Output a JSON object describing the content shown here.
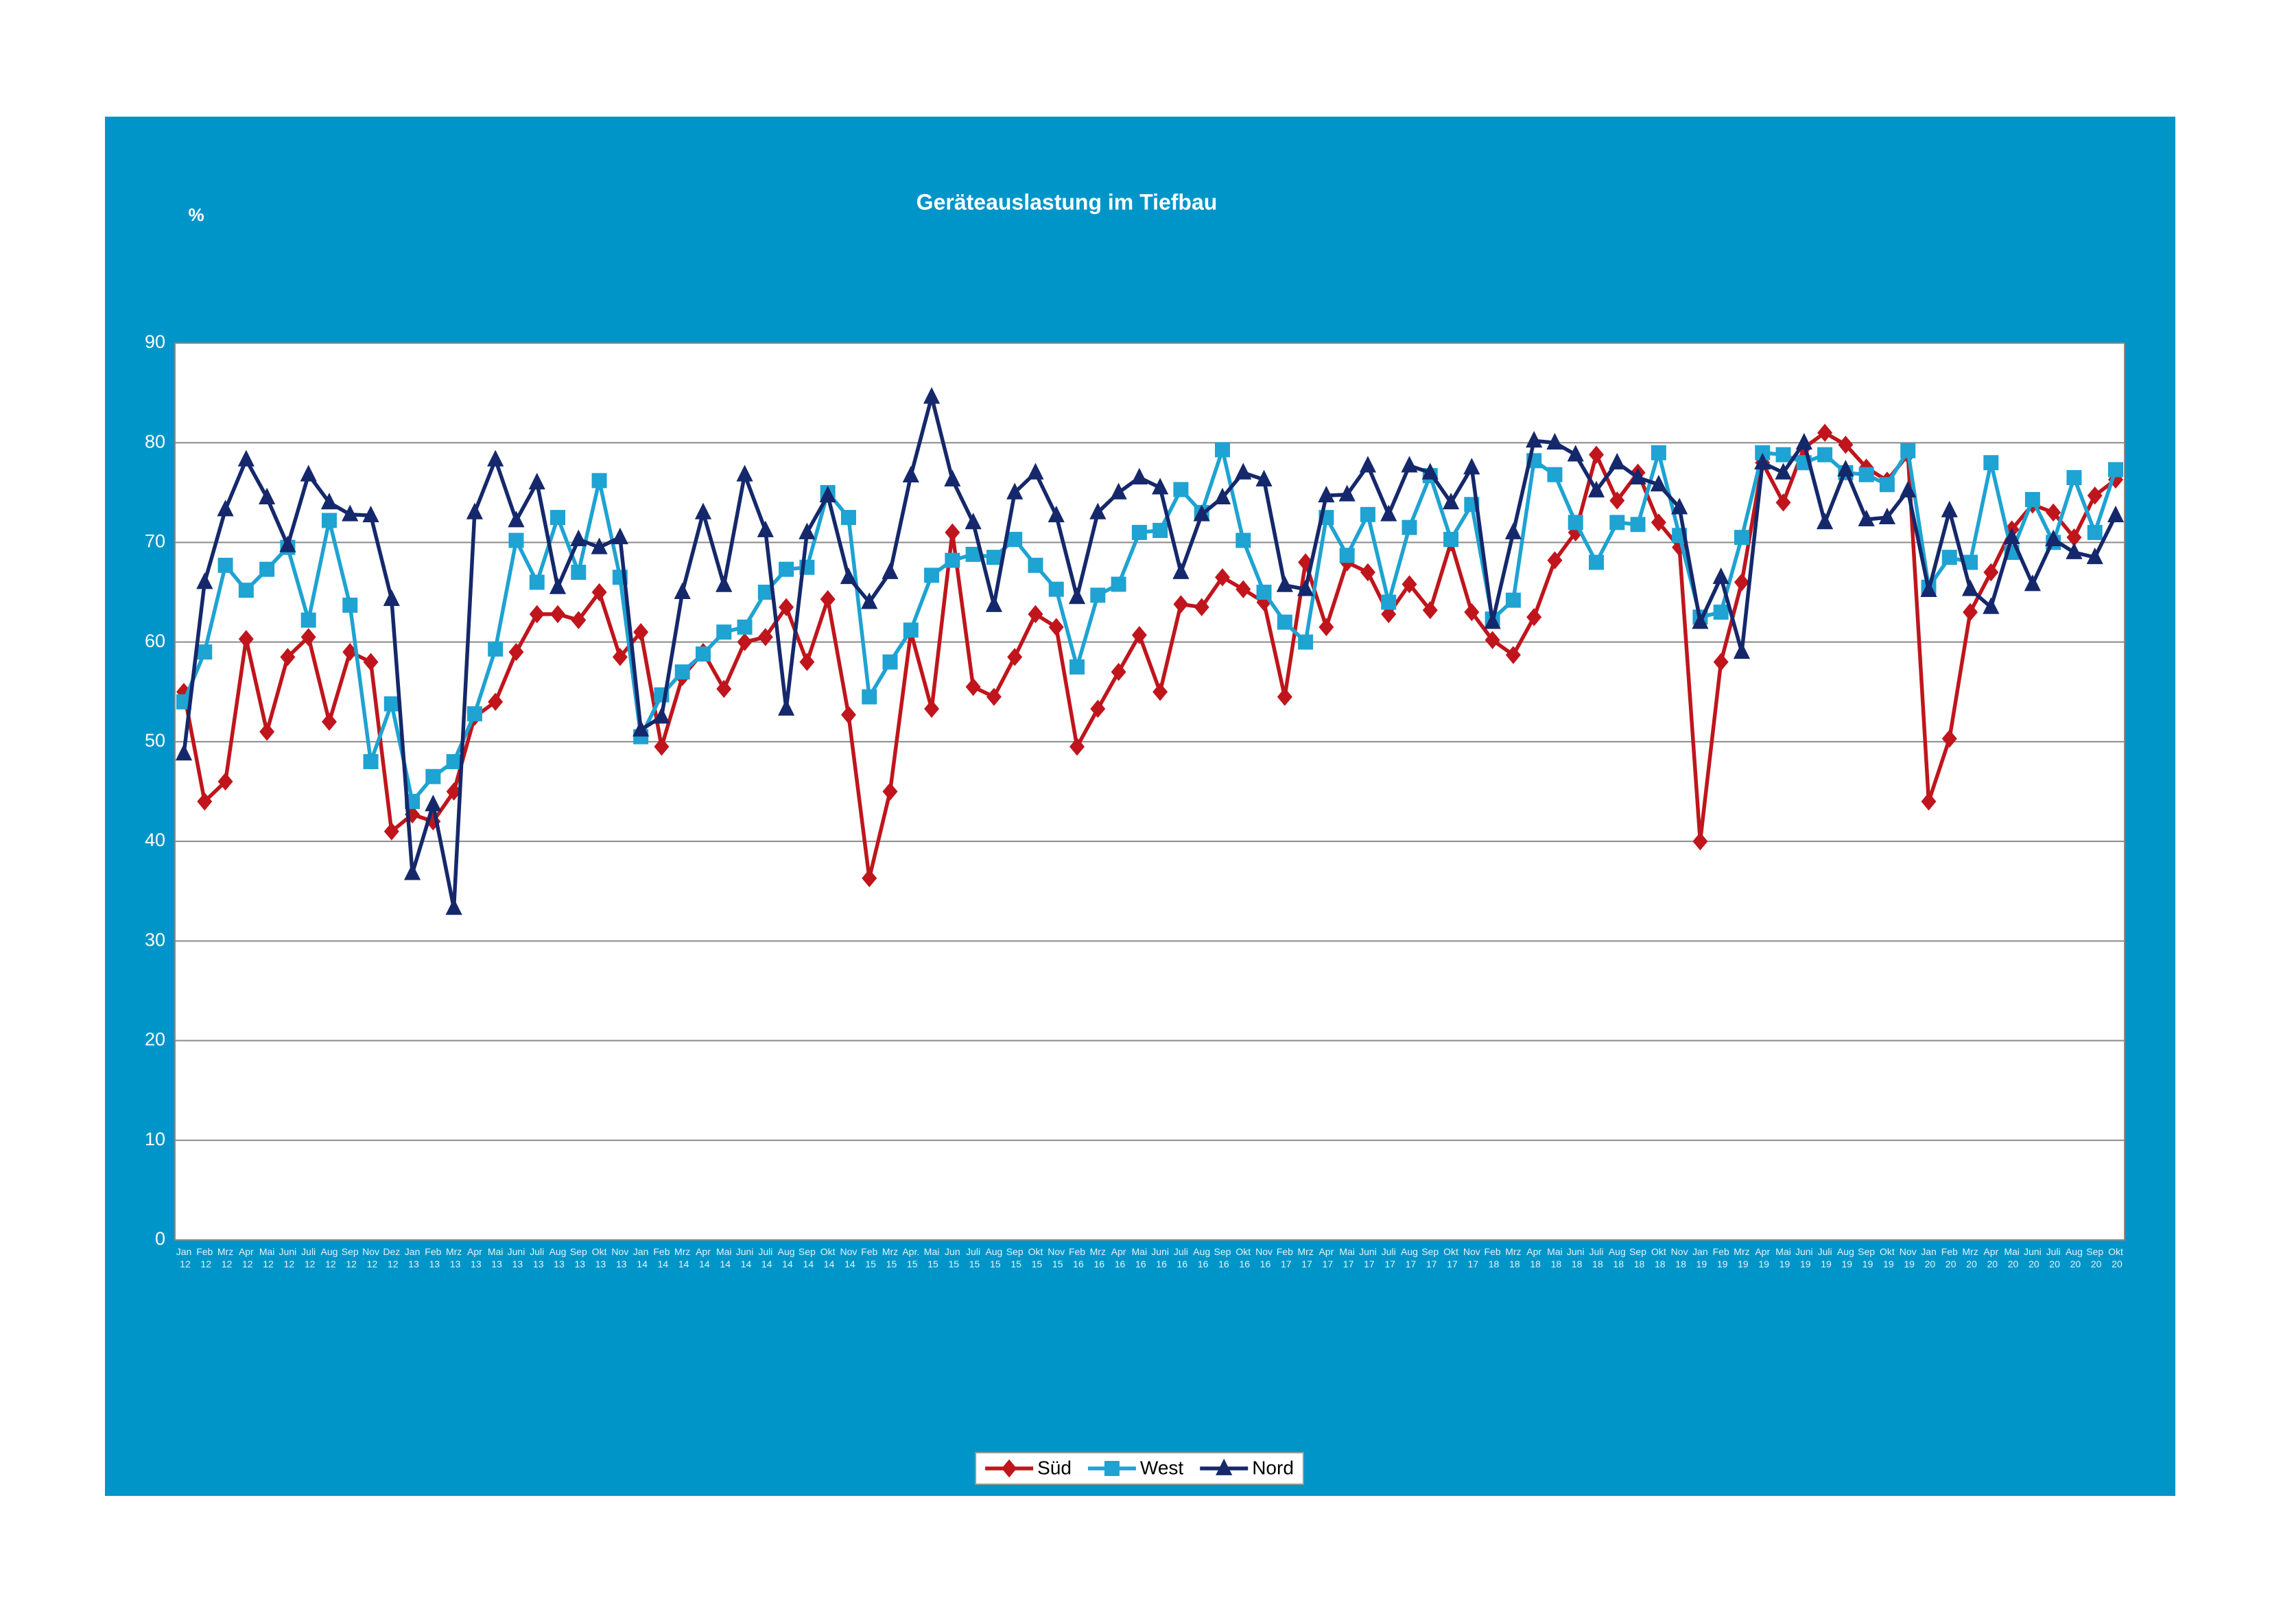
{
  "chart_data": {
    "type": "line",
    "title": "Geräteauslastung im Tiefbau",
    "y_label": "%",
    "ylim": [
      0,
      90
    ],
    "yticks": [
      0,
      10,
      20,
      30,
      40,
      50,
      60,
      70,
      80,
      90
    ],
    "grid": true,
    "legend": "bottom",
    "categories": [
      "Jan 12",
      "Feb 12",
      "Mrz 12",
      "Apr 12",
      "Mai 12",
      "Juni 12",
      "Juli 12",
      "Aug 12",
      "Sep 12",
      "Nov 12",
      "Dez 12",
      "Jan 13",
      "Feb 13",
      "Mrz 13",
      "Apr 13",
      "Mai 13",
      "Juni 13",
      "Juli 13",
      "Aug 13",
      "Sep 13",
      "Okt 13",
      "Nov 13",
      "Jan 14",
      "Feb 14",
      "Mrz 14",
      "Apr 14",
      "Mai 14",
      "Juni 14",
      "Juli 14",
      "Aug 14",
      "Sep 14",
      "Okt 14",
      "Nov 14",
      "Feb 15",
      "Mrz 15",
      "Apr. 15",
      "Mai 15",
      "Jun 15",
      "Juli 15",
      "Aug 15",
      "Sep 15",
      "Okt 15",
      "Nov 15",
      "Feb 16",
      "Mrz 16",
      "Apr 16",
      "Mai 16",
      "Juni 16",
      "Juli 16",
      "Aug 16",
      "Sep 16",
      "Okt 16",
      "Nov 16",
      "Feb 17",
      "Mrz 17",
      "Apr 17",
      "Mai 17",
      "Juni 17",
      "Juli 17",
      "Aug 17",
      "Sep 17",
      "Okt 17",
      "Nov 17",
      "Feb 18",
      "Mrz 18",
      "Apr 18",
      "Mai 18",
      "Juni 18",
      "Juli 18",
      "Aug 18",
      "Sep 18",
      "Okt 18",
      "Nov 18",
      "Jan 19",
      "Feb 19",
      "Mrz 19",
      "Apr 19",
      "Mai 19",
      "Juni 19",
      "Juli 19",
      "Aug 19",
      "Sep 19",
      "Okt 19",
      "Nov 19",
      "Jan 20",
      "Feb 20",
      "Mrz 20",
      "Apr 20",
      "Mai 20",
      "Juni 20",
      "Juli 20",
      "Aug 20",
      "Sep 20",
      "Okt 20"
    ],
    "series": [
      {
        "name": "Süd",
        "color": "#c0151c",
        "marker": "diamond",
        "values": [
          55,
          44,
          46,
          60.3,
          51,
          58.5,
          60.5,
          52,
          59,
          58,
          41,
          42.7,
          42,
          45,
          52.5,
          54,
          59,
          62.8,
          62.8,
          62.2,
          65,
          58.5,
          61,
          49.5,
          56.5,
          59,
          55.3,
          60,
          60.5,
          63.5,
          58,
          64.3,
          52.7,
          36.3,
          45,
          61,
          53.3,
          71,
          55.5,
          54.5,
          58.5,
          62.8,
          61.5,
          49.5,
          53.3,
          57,
          60.7,
          55,
          63.8,
          63.5,
          66.5,
          65.3,
          64,
          54.5,
          68,
          61.5,
          68,
          67,
          62.8,
          65.8,
          63.2,
          70,
          63,
          60.2,
          58.7,
          62.5,
          68.2,
          71,
          78.8,
          74.2,
          77,
          72,
          69.5,
          40,
          58,
          66,
          78,
          74,
          79.5,
          81,
          79.8,
          77.5,
          76.2,
          78.8,
          44,
          50.3,
          63,
          67,
          71.3,
          73.8,
          73,
          70.5,
          74.7,
          76.3
        ]
      },
      {
        "name": "West",
        "color": "#1ea3d2",
        "marker": "square",
        "values": [
          54,
          59,
          67.7,
          65.2,
          67.3,
          69.5,
          62.2,
          72.2,
          63.7,
          48,
          53.8,
          44,
          46.5,
          48,
          52.8,
          59.3,
          70.2,
          66,
          72.5,
          67,
          76.2,
          66.5,
          50.5,
          54.7,
          57,
          58.8,
          61,
          61.5,
          65,
          67.3,
          67.5,
          75,
          72.5,
          54.5,
          58,
          61.2,
          66.7,
          68.2,
          68.8,
          68.5,
          70.3,
          67.7,
          65.3,
          57.5,
          64.7,
          65.8,
          71,
          71.2,
          75.3,
          73,
          79.3,
          70.2,
          65,
          62,
          60,
          72.5,
          68.7,
          72.8,
          64,
          71.5,
          76.7,
          70.3,
          73.8,
          62.3,
          64.2,
          78.2,
          76.8,
          72,
          68,
          72,
          71.8,
          79,
          70.7,
          62.5,
          63,
          70.5,
          79,
          78.8,
          78,
          78.8,
          77,
          76.8,
          75.8,
          79.2,
          65.5,
          68.5,
          68,
          78,
          69,
          74.3,
          70,
          76.5,
          71,
          77.3
        ]
      },
      {
        "name": "Nord",
        "color": "#15286b",
        "marker": "triangle",
        "values": [
          48.8,
          66,
          73.3,
          78.3,
          74.5,
          69.7,
          76.8,
          74,
          72.8,
          72.7,
          64.3,
          36.8,
          43.7,
          33.3,
          73,
          78.3,
          72.2,
          76,
          65.5,
          70.3,
          69.5,
          70.5,
          51.2,
          52.5,
          65,
          73,
          65.7,
          76.8,
          71.2,
          53.3,
          71,
          74.7,
          66.5,
          64,
          67,
          76.7,
          84.6,
          76.3,
          72,
          63.7,
          75,
          77,
          72.7,
          64.5,
          73,
          75,
          76.5,
          75.5,
          67,
          72.8,
          74.5,
          77,
          76.3,
          65.7,
          65.3,
          74.7,
          74.8,
          77.7,
          72.8,
          77.7,
          77,
          74,
          77.5,
          62,
          71,
          80.2,
          80,
          78.8,
          75.2,
          78,
          76.5,
          75.8,
          73.5,
          62,
          66.5,
          59,
          78,
          77,
          80,
          72,
          77.3,
          72.3,
          72.5,
          75.2,
          65.2,
          73.2,
          65.3,
          63.5,
          70.5,
          65.8,
          70.3,
          69,
          68.5,
          72.7
        ]
      }
    ]
  }
}
